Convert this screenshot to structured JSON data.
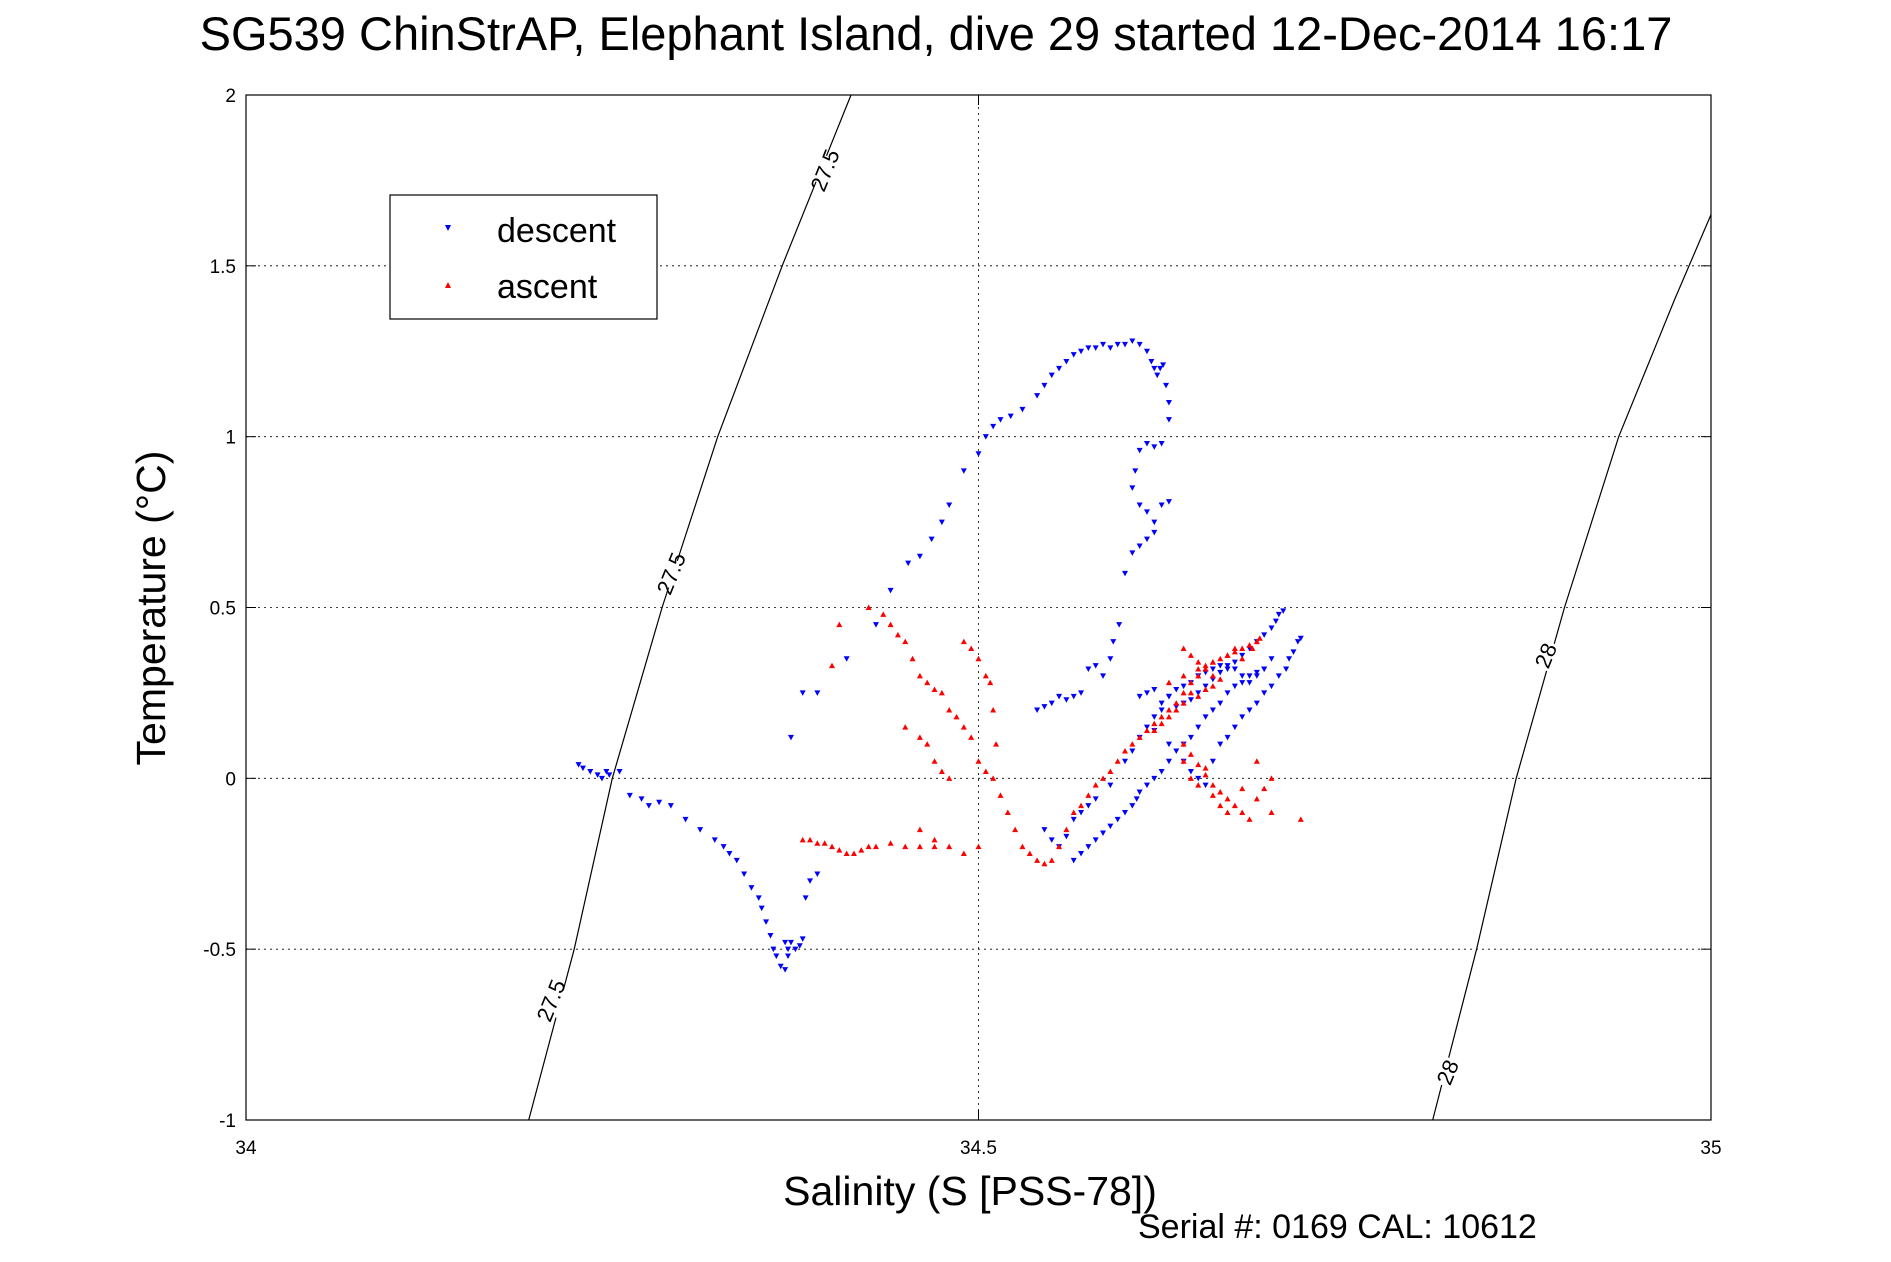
{
  "title": "SG539 ChinStrAP, Elephant Island, dive 29 started 12-Dec-2014 16:17",
  "serial_note": "Serial #: 0169 CAL: 10612",
  "colors": {
    "descent": "#0000ff",
    "ascent": "#ff0000",
    "grid": "#000000",
    "contour": "#000000"
  },
  "chart_data": {
    "type": "scatter",
    "xlabel": "Salinity (S [PSS-78])",
    "ylabel": "Temperature (°C)",
    "xlim": [
      34,
      35
    ],
    "ylim": [
      -1,
      2
    ],
    "x_ticks": [
      34,
      34.5,
      35
    ],
    "x_tick_labels": [
      "34",
      "34.5",
      "35"
    ],
    "y_ticks": [
      -1,
      -0.5,
      0,
      0.5,
      1,
      1.5,
      2
    ],
    "y_tick_labels": [
      "-1",
      "-0.5",
      "0",
      "0.5",
      "1",
      "1.5",
      "2"
    ],
    "grid": true,
    "legend_placement": "upper-left",
    "legend": [
      "descent",
      "ascent"
    ],
    "contours": [
      {
        "label": "27.5",
        "points": [
          [
            34.193,
            -1.0
          ],
          [
            34.224,
            -0.5
          ],
          [
            34.25,
            0.0
          ],
          [
            34.284,
            0.5
          ],
          [
            34.322,
            1.0
          ],
          [
            34.366,
            1.5
          ],
          [
            34.413,
            2.0
          ]
        ],
        "label_positions": [
          [
            34.208,
            -0.65
          ],
          [
            34.29,
            0.6
          ],
          [
            34.395,
            1.78
          ]
        ]
      },
      {
        "label": "28",
        "points": [
          [
            34.81,
            -1.0
          ],
          [
            34.84,
            -0.5
          ],
          [
            34.867,
            0.0
          ],
          [
            34.9,
            0.5
          ],
          [
            34.937,
            1.0
          ],
          [
            34.975,
            1.4
          ],
          [
            35.0,
            1.65
          ]
        ],
        "label_positions": [
          [
            34.82,
            -0.86
          ],
          [
            34.887,
            0.36
          ]
        ]
      }
    ],
    "series": [
      {
        "name": "descent",
        "marker": "triangle-down",
        "x": [
          34.227,
          34.23,
          34.235,
          34.24,
          34.243,
          34.246,
          34.248,
          34.255,
          34.262,
          34.27,
          34.275,
          34.282,
          34.29,
          34.3,
          34.31,
          34.32,
          34.326,
          34.33,
          34.335,
          34.34,
          34.345,
          34.35,
          34.352,
          34.355,
          34.358,
          34.36,
          34.362,
          34.365,
          34.368,
          34.37,
          34.368,
          34.37,
          34.372,
          34.375,
          34.378,
          34.38,
          34.382,
          34.385,
          34.39,
          34.38,
          34.372,
          34.39,
          34.41,
          34.43,
          34.44,
          34.452,
          34.46,
          34.468,
          34.475,
          34.48,
          34.49,
          34.5,
          34.505,
          34.51,
          34.515,
          34.522,
          34.53,
          34.54,
          34.545,
          34.55,
          34.555,
          34.56,
          34.565,
          34.57,
          34.575,
          34.58,
          34.585,
          34.59,
          34.595,
          34.6,
          34.605,
          34.61,
          34.615,
          34.618,
          34.62,
          34.622,
          34.624,
          34.626,
          34.628,
          34.63,
          34.63,
          34.625,
          34.62,
          34.615,
          34.61,
          34.607,
          34.605,
          34.61,
          34.615,
          34.62,
          34.625,
          34.63,
          34.62,
          34.615,
          34.61,
          34.605,
          34.6,
          34.596,
          34.592,
          34.59,
          34.585,
          34.58,
          34.575,
          34.57,
          34.565,
          34.56,
          34.555,
          34.55,
          34.545,
          34.54,
          34.545,
          34.55,
          34.555,
          34.56,
          34.565,
          34.57,
          34.575,
          34.58,
          34.59,
          34.6,
          34.605,
          34.61,
          34.615,
          34.62,
          34.625,
          34.63,
          34.635,
          34.64,
          34.645,
          34.65,
          34.655,
          34.66,
          34.665,
          34.67,
          34.675,
          34.68,
          34.685,
          34.69,
          34.695,
          34.7,
          34.703,
          34.705,
          34.708,
          34.7,
          34.695,
          34.69,
          34.685,
          34.68,
          34.675,
          34.67,
          34.665,
          34.66,
          34.655,
          34.65,
          34.645,
          34.64,
          34.635,
          34.63,
          34.625,
          34.62,
          34.615,
          34.61,
          34.62,
          34.63,
          34.64,
          34.645,
          34.65,
          34.655,
          34.66,
          34.665,
          34.67,
          34.675,
          34.68,
          34.685,
          34.69,
          34.695,
          34.7,
          34.705,
          34.71,
          34.712,
          34.715,
          34.718,
          34.72,
          34.565,
          34.57,
          34.575,
          34.58,
          34.585,
          34.59,
          34.595,
          34.6,
          34.605,
          34.608,
          34.61,
          34.615,
          34.62,
          34.625,
          34.63,
          34.635,
          34.64,
          34.645,
          34.65,
          34.655,
          34.66,
          34.665,
          34.67,
          34.675,
          34.68,
          34.685,
          34.69,
          34.695
        ],
        "y": [
          0.04,
          0.03,
          0.02,
          0.01,
          0.0,
          0.02,
          0.01,
          0.02,
          -0.05,
          -0.06,
          -0.08,
          -0.07,
          -0.08,
          -0.12,
          -0.15,
          -0.18,
          -0.2,
          -0.22,
          -0.24,
          -0.28,
          -0.32,
          -0.35,
          -0.38,
          -0.42,
          -0.46,
          -0.5,
          -0.52,
          -0.55,
          -0.56,
          -0.52,
          -0.48,
          -0.5,
          -0.48,
          -0.5,
          -0.49,
          -0.47,
          -0.35,
          -0.3,
          -0.28,
          0.25,
          0.12,
          0.25,
          0.35,
          0.45,
          0.55,
          0.63,
          0.65,
          0.7,
          0.75,
          0.8,
          0.9,
          0.95,
          1.0,
          1.03,
          1.05,
          1.06,
          1.08,
          1.12,
          1.15,
          1.18,
          1.2,
          1.22,
          1.24,
          1.25,
          1.26,
          1.26,
          1.27,
          1.26,
          1.27,
          1.27,
          1.28,
          1.27,
          1.25,
          1.22,
          1.2,
          1.18,
          1.2,
          1.21,
          1.15,
          1.1,
          1.05,
          0.98,
          0.97,
          0.98,
          0.96,
          0.9,
          0.85,
          0.8,
          0.78,
          0.75,
          0.8,
          0.81,
          0.72,
          0.7,
          0.68,
          0.66,
          0.6,
          0.45,
          0.4,
          0.35,
          0.3,
          0.33,
          0.32,
          0.25,
          0.24,
          0.23,
          0.24,
          0.22,
          0.21,
          0.2,
          -0.15,
          -0.18,
          -0.2,
          -0.17,
          -0.12,
          -0.1,
          -0.08,
          -0.06,
          -0.02,
          0.05,
          0.08,
          0.12,
          0.15,
          0.18,
          0.2,
          0.24,
          0.26,
          0.27,
          0.28,
          0.3,
          0.31,
          0.32,
          0.33,
          0.32,
          0.34,
          0.36,
          0.38,
          0.4,
          0.42,
          0.44,
          0.46,
          0.48,
          0.49,
          0.35,
          0.32,
          0.3,
          0.28,
          0.3,
          0.32,
          0.33,
          0.31,
          0.29,
          0.27,
          0.25,
          0.23,
          0.22,
          0.21,
          0.24,
          0.22,
          0.26,
          0.25,
          0.24,
          0.14,
          0.1,
          0.05,
          0.02,
          0.0,
          -0.02,
          0.05,
          0.1,
          0.12,
          0.15,
          0.18,
          0.2,
          0.22,
          0.25,
          0.27,
          0.3,
          0.32,
          0.35,
          0.37,
          0.4,
          0.41,
          -0.24,
          -0.22,
          -0.2,
          -0.18,
          -0.16,
          -0.14,
          -0.12,
          -0.1,
          -0.08,
          -0.06,
          -0.04,
          -0.02,
          0.0,
          0.02,
          0.05,
          0.08,
          0.1,
          0.12,
          0.15,
          0.18,
          0.2,
          0.22,
          0.25,
          0.27,
          0.28,
          0.3,
          0.31,
          0.32
        ]
      },
      {
        "name": "ascent",
        "marker": "triangle-up",
        "x": [
          34.38,
          34.385,
          34.39,
          34.395,
          34.4,
          34.405,
          34.41,
          34.415,
          34.42,
          34.425,
          34.43,
          34.44,
          34.45,
          34.46,
          34.47,
          34.4,
          34.405,
          34.425,
          34.435,
          34.44,
          34.445,
          34.45,
          34.455,
          34.46,
          34.465,
          34.47,
          34.475,
          34.48,
          34.485,
          34.49,
          34.495,
          34.5,
          34.505,
          34.51,
          34.45,
          34.46,
          34.465,
          34.47,
          34.475,
          34.48,
          34.49,
          34.495,
          34.5,
          34.505,
          34.508,
          34.51,
          34.512,
          34.515,
          34.52,
          34.525,
          34.53,
          34.535,
          34.54,
          34.545,
          34.55,
          34.555,
          34.56,
          34.565,
          34.57,
          34.575,
          34.58,
          34.585,
          34.59,
          34.595,
          34.6,
          34.605,
          34.61,
          34.615,
          34.62,
          34.625,
          34.63,
          34.635,
          34.64,
          34.645,
          34.65,
          34.655,
          34.66,
          34.665,
          34.67,
          34.675,
          34.68,
          34.685,
          34.687,
          34.69,
          34.692,
          34.64,
          34.645,
          34.65,
          34.655,
          34.66,
          34.665,
          34.66,
          34.655,
          34.65,
          34.645,
          34.64,
          34.635,
          34.63,
          34.625,
          34.62,
          34.63,
          34.64,
          34.65,
          34.66,
          34.67,
          34.675,
          34.68,
          34.64,
          34.645,
          34.65,
          34.655,
          34.66,
          34.665,
          34.67,
          34.68,
          34.69,
          34.7,
          34.72,
          34.64,
          34.645,
          34.65,
          34.655,
          34.66,
          34.665,
          34.67,
          34.675,
          34.68,
          34.685,
          34.69,
          34.695,
          34.7,
          34.46,
          34.47,
          34.48,
          34.49,
          34.5
        ],
        "y": [
          -0.18,
          -0.18,
          -0.19,
          -0.19,
          -0.2,
          -0.21,
          -0.22,
          -0.22,
          -0.21,
          -0.2,
          -0.2,
          -0.19,
          -0.2,
          -0.2,
          -0.2,
          0.33,
          0.45,
          0.5,
          0.48,
          0.45,
          0.42,
          0.4,
          0.35,
          0.3,
          0.28,
          0.26,
          0.25,
          0.2,
          0.18,
          0.15,
          0.12,
          0.05,
          0.02,
          0.0,
          0.15,
          0.12,
          0.1,
          0.05,
          0.02,
          0.0,
          0.4,
          0.38,
          0.35,
          0.3,
          0.28,
          0.2,
          0.1,
          -0.05,
          -0.1,
          -0.15,
          -0.2,
          -0.22,
          -0.24,
          -0.25,
          -0.24,
          -0.2,
          -0.15,
          -0.1,
          -0.08,
          -0.05,
          -0.02,
          0.0,
          0.02,
          0.05,
          0.08,
          0.1,
          0.12,
          0.14,
          0.16,
          0.18,
          0.2,
          0.22,
          0.25,
          0.28,
          0.3,
          0.32,
          0.34,
          0.35,
          0.36,
          0.37,
          0.38,
          0.39,
          0.38,
          0.4,
          0.41,
          0.38,
          0.36,
          0.34,
          0.33,
          0.3,
          0.29,
          0.27,
          0.26,
          0.24,
          0.25,
          0.22,
          0.2,
          0.18,
          0.16,
          0.14,
          0.28,
          0.3,
          0.32,
          0.34,
          0.36,
          0.38,
          0.35,
          0.05,
          0.0,
          -0.02,
          0.03,
          -0.05,
          -0.08,
          -0.1,
          -0.03,
          0.05,
          -0.1,
          -0.12,
          0.1,
          0.07,
          0.04,
          0.01,
          -0.02,
          -0.04,
          -0.06,
          -0.08,
          -0.1,
          -0.12,
          -0.06,
          -0.03,
          0.0,
          -0.15,
          -0.18,
          -0.2,
          -0.22,
          -0.2
        ]
      }
    ]
  }
}
